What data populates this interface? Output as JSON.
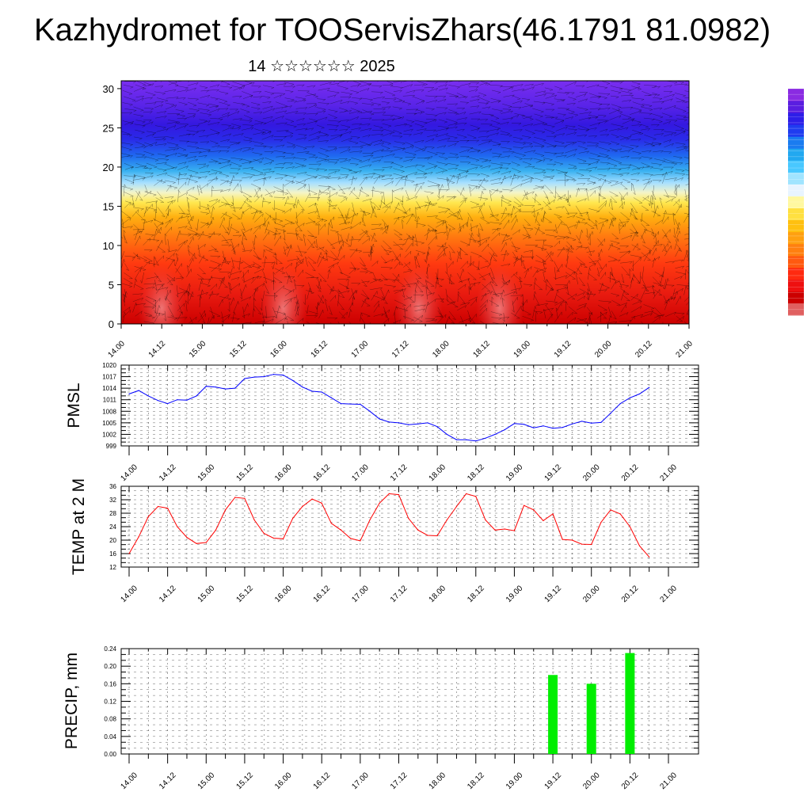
{
  "title": "Kazhydromet for TOOServisZhars(46.1791 81.0982)",
  "subtitle": "14 ☆☆☆☆☆☆ 2025",
  "x_tick_labels": [
    "14.00",
    "14.12",
    "15.00",
    "15.12",
    "16.00",
    "16.12",
    "17.00",
    "17.12",
    "18.00",
    "18.12",
    "19.00",
    "19.12",
    "20.00",
    "20.12",
    "21.00"
  ],
  "colors": {
    "pmsl_line": "#0000ff",
    "temp_line": "#ff0000",
    "precip_bar": "#00ee00",
    "frame": "#000000"
  },
  "chart_data": [
    {
      "type": "heatmap",
      "title": "",
      "ylabel": "",
      "xlim": [
        0,
        168
      ],
      "ylim": [
        0,
        31
      ],
      "y_ticks": [
        0,
        5,
        10,
        15,
        20,
        25,
        30
      ],
      "colorbar": [
        "#8a2be2",
        "#5a1ee0",
        "#2d1ee8",
        "#1f3cf0",
        "#1a7cf0",
        "#22a8f0",
        "#48c8ff",
        "#a0e4ff",
        "#e8f4ff",
        "#fff8a0",
        "#ffe040",
        "#ffc010",
        "#ffa010",
        "#ff8010",
        "#ff5a10",
        "#ff2a10",
        "#ee1010",
        "#cc0000",
        "#e06060"
      ]
    },
    {
      "type": "line",
      "ylabel": "PMSL",
      "ylim": [
        999,
        1020
      ],
      "y_ticks": [
        999,
        1002,
        1005,
        1008,
        1011,
        1014,
        1017,
        1020
      ],
      "series": [
        {
          "x": [
            0,
            3,
            6,
            9,
            12,
            15,
            18,
            21,
            24,
            27,
            30,
            33,
            36,
            39,
            42,
            45,
            48,
            51,
            54,
            57,
            60,
            63,
            66,
            69,
            72,
            75,
            78,
            81,
            84,
            87,
            90,
            93,
            96,
            99,
            102,
            105,
            108,
            111,
            114,
            117,
            120,
            123,
            126,
            129,
            132,
            135,
            138,
            141,
            144,
            147,
            150,
            153,
            156,
            159,
            162
          ],
          "values": [
            1012.5,
            1013.4,
            1012.0,
            1010.8,
            1010.0,
            1011.0,
            1010.9,
            1012.0,
            1014.5,
            1014.3,
            1013.8,
            1014.0,
            1016.5,
            1016.9,
            1017.0,
            1017.6,
            1017.4,
            1016.0,
            1014.3,
            1013.2,
            1013.0,
            1011.5,
            1010.0,
            1009.9,
            1009.8,
            1008.0,
            1006.0,
            1005.2,
            1005.0,
            1004.5,
            1004.7,
            1005.0,
            1004.0,
            1002.0,
            1000.6,
            1000.6,
            1000.3,
            1001.0,
            1002.0,
            1003.2,
            1004.8,
            1004.6,
            1003.7,
            1004.2,
            1003.6,
            1003.8,
            1004.7,
            1005.4,
            1004.9,
            1005.1,
            1007.5,
            1010.0,
            1011.5,
            1012.5,
            1014.2
          ]
        }
      ]
    },
    {
      "type": "line",
      "ylabel": "TEMP at 2 M",
      "ylim": [
        12,
        36
      ],
      "y_ticks": [
        12,
        16,
        20,
        24,
        28,
        32,
        36
      ],
      "series": [
        {
          "x": [
            0,
            3,
            6,
            9,
            12,
            15,
            18,
            21,
            24,
            27,
            30,
            33,
            36,
            39,
            42,
            45,
            48,
            51,
            54,
            57,
            60,
            63,
            66,
            69,
            72,
            75,
            78,
            81,
            84,
            87,
            90,
            93,
            96,
            99,
            102,
            105,
            108,
            111,
            114,
            117,
            120,
            123,
            126,
            129,
            132,
            135,
            138,
            141,
            144,
            147,
            150,
            153,
            156,
            159,
            162
          ],
          "values": [
            16.0,
            21.0,
            27.0,
            30.0,
            29.5,
            24.0,
            20.8,
            19.0,
            19.3,
            23.0,
            29.0,
            32.7,
            32.4,
            26.0,
            22.0,
            20.6,
            20.4,
            26.5,
            30.0,
            32.2,
            31.0,
            25.0,
            23.0,
            20.5,
            19.8,
            26.0,
            31.0,
            33.8,
            33.5,
            26.5,
            23.0,
            21.4,
            21.3,
            26.0,
            30.0,
            33.8,
            33.0,
            26.0,
            23.0,
            23.3,
            22.8,
            30.3,
            29.0,
            25.8,
            27.8,
            20.2,
            20.0,
            18.8,
            18.7,
            25.3,
            29.0,
            27.8,
            24.0,
            18.3,
            15.0
          ]
        }
      ]
    },
    {
      "type": "bar",
      "ylabel": "PRECIP, mm",
      "ylim": [
        0,
        0.24
      ],
      "y_ticks": [
        "0.00",
        "0.04",
        "0.08",
        "0.12",
        "0.16",
        "0.20",
        "0.24"
      ],
      "x": [
        132,
        144,
        156
      ],
      "values": [
        0.18,
        0.16,
        0.23
      ]
    }
  ]
}
